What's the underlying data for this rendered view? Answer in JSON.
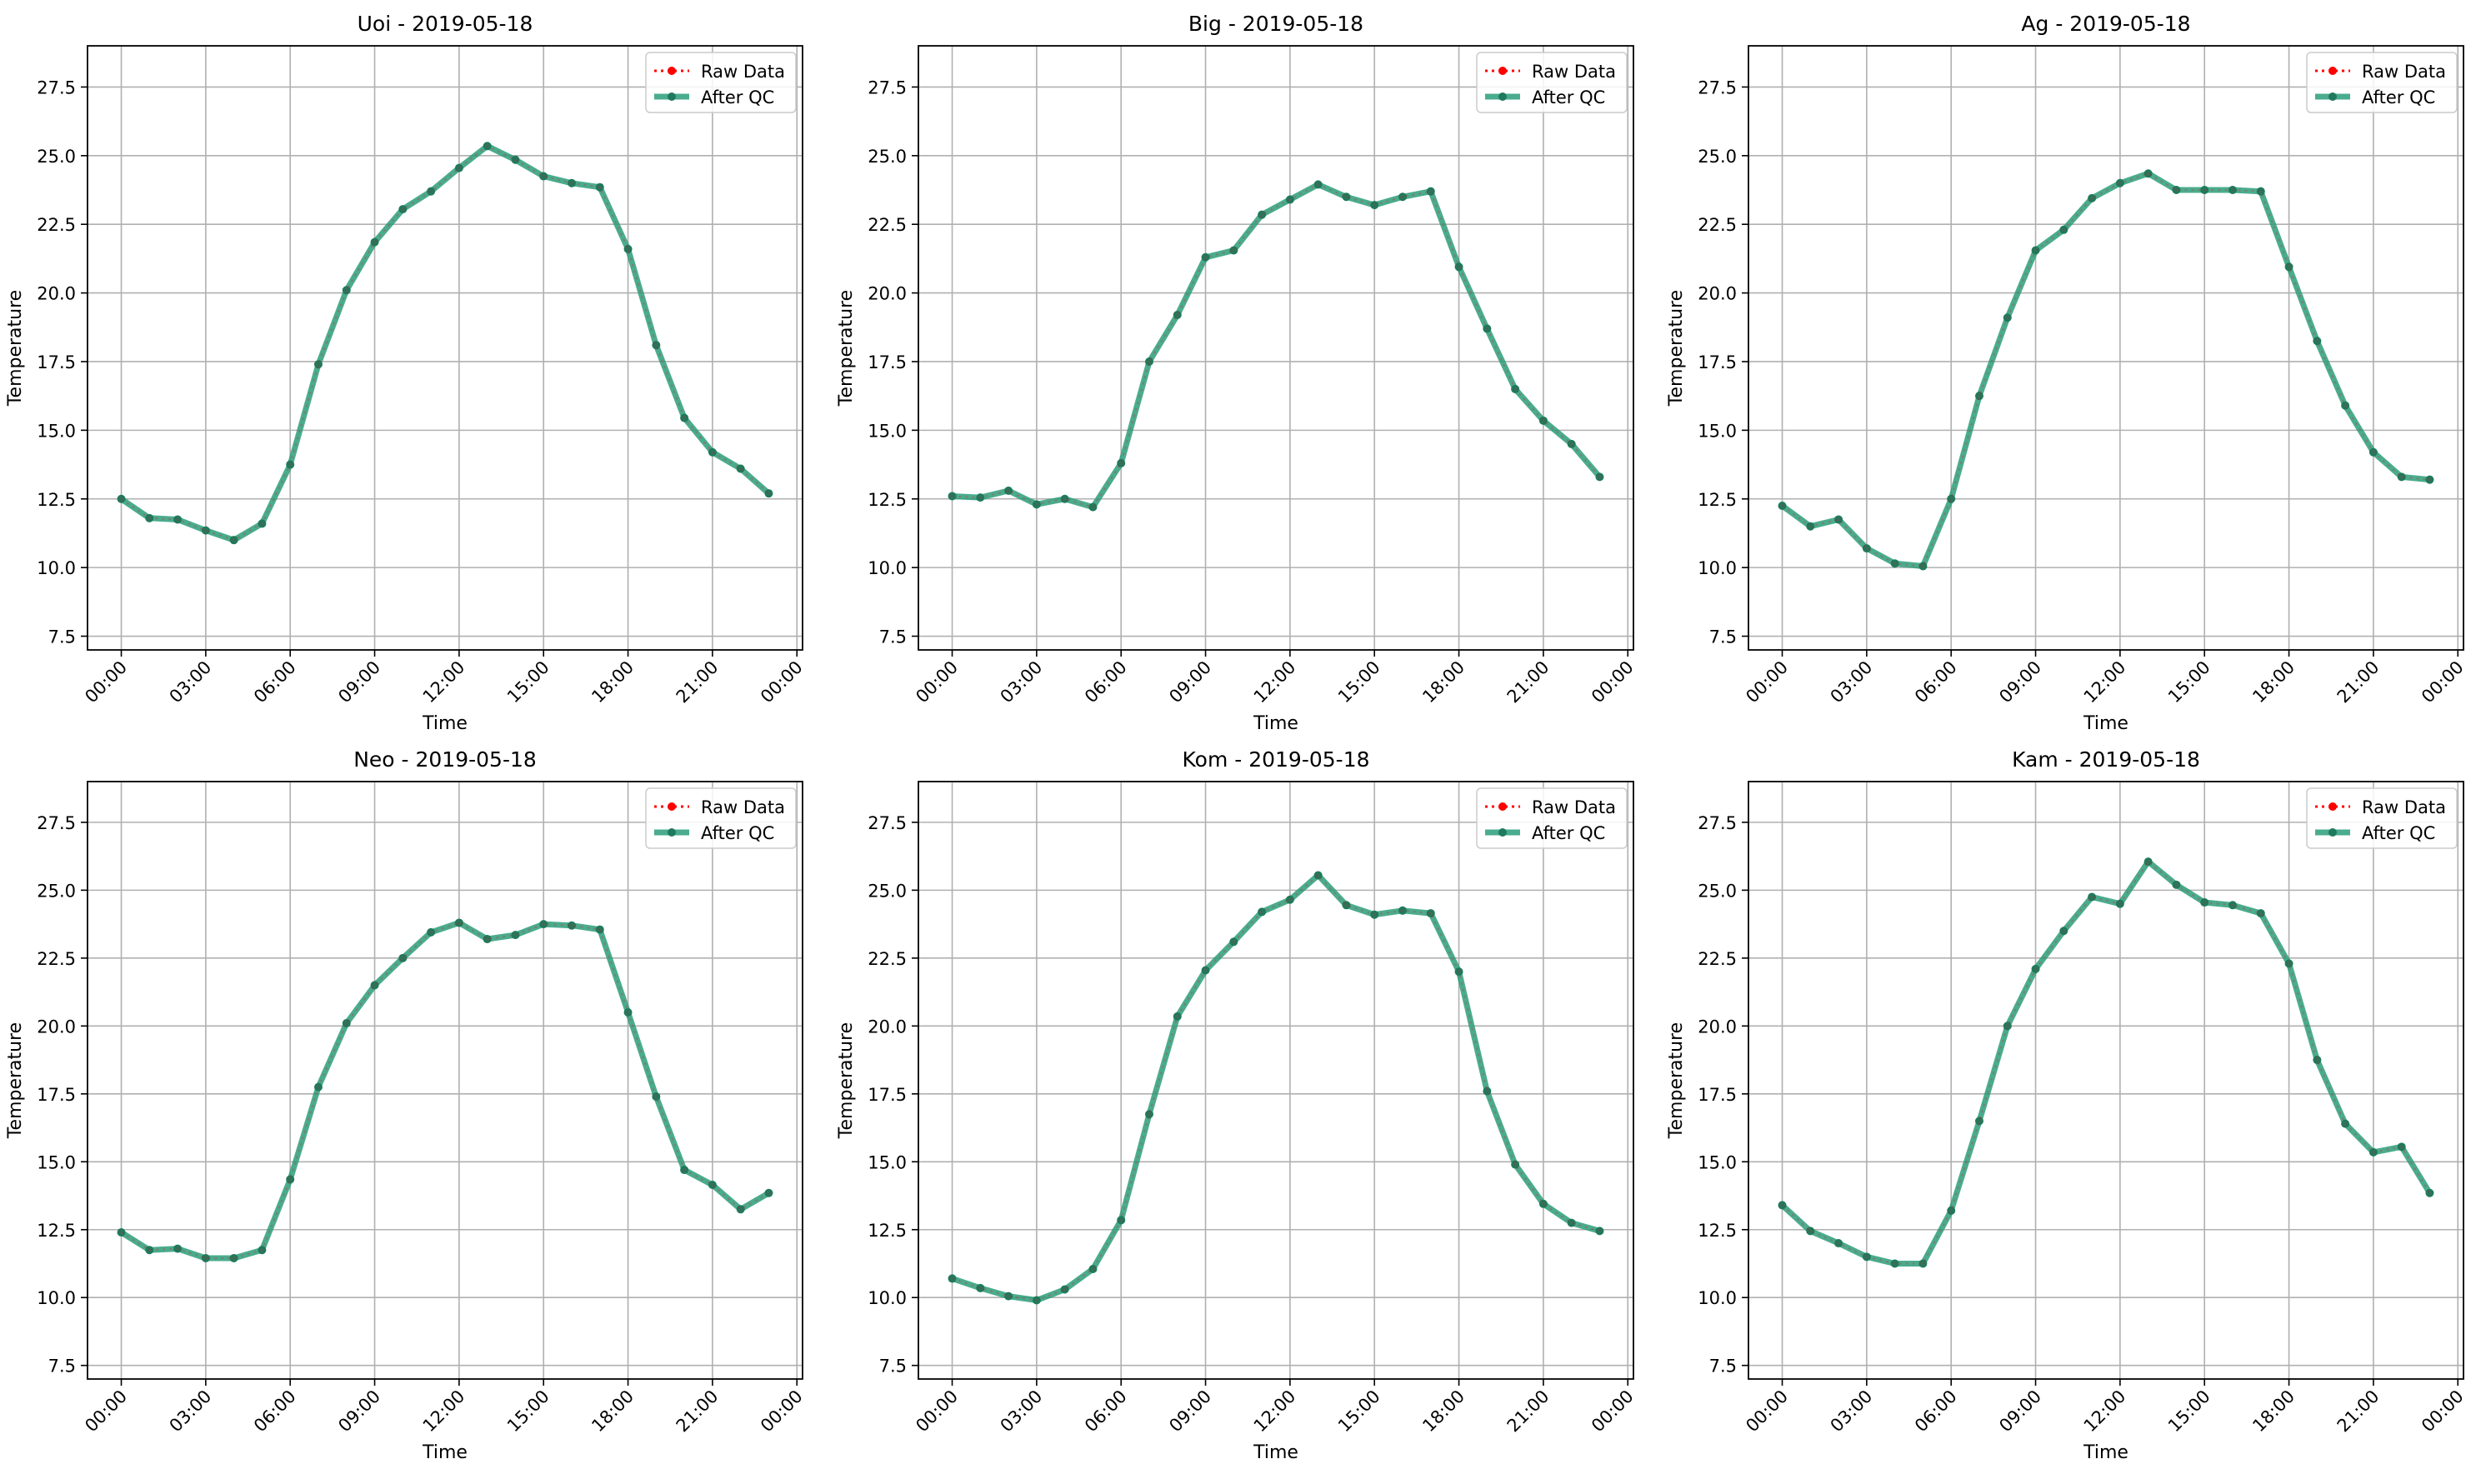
{
  "chart_data": [
    {
      "type": "line",
      "title": "Uoi - 2019-05-18",
      "xlabel": "Time",
      "ylabel": "Temperature",
      "ylim": [
        7.0,
        29.0
      ],
      "xlim": [
        "2019-05-17 22:48",
        "2019-05-19 00:12"
      ],
      "y_ticks": [
        "7.5",
        "10.0",
        "12.5",
        "15.0",
        "17.5",
        "20.0",
        "22.5",
        "25.0",
        "27.5"
      ],
      "x_ticks": [
        "00:00",
        "03:00",
        "06:00",
        "09:00",
        "12:00",
        "15:00",
        "18:00",
        "21:00",
        "00:00"
      ],
      "grid": true,
      "legend": "top-right",
      "legend_entries": [
        "Raw Data",
        "After QC"
      ],
      "x": [
        "00:00",
        "01:00",
        "02:00",
        "03:00",
        "04:00",
        "05:00",
        "06:00",
        "07:00",
        "08:00",
        "09:00",
        "10:00",
        "11:00",
        "12:00",
        "13:00",
        "14:00",
        "15:00",
        "16:00",
        "17:00",
        "18:00",
        "19:00",
        "20:00",
        "21:00",
        "22:00",
        "23:00"
      ],
      "series": [
        {
          "name": "Raw Data",
          "values": [
            12.5,
            11.8,
            11.75,
            11.35,
            11.0,
            11.6,
            13.75,
            17.4,
            20.1,
            21.85,
            23.05,
            23.7,
            24.55,
            25.35,
            24.85,
            24.25,
            24.0,
            23.85,
            21.6,
            18.1,
            15.45,
            14.2,
            13.6,
            12.7
          ]
        },
        {
          "name": "After QC",
          "values": [
            12.5,
            11.8,
            11.75,
            11.35,
            11.0,
            11.6,
            13.75,
            17.4,
            20.1,
            21.85,
            23.05,
            23.7,
            24.55,
            25.35,
            24.85,
            24.25,
            24.0,
            23.85,
            21.6,
            18.1,
            15.45,
            14.2,
            13.6,
            12.7
          ]
        }
      ]
    },
    {
      "type": "line",
      "title": "Big - 2019-05-18",
      "xlabel": "Time",
      "ylabel": "Temperature",
      "ylim": [
        7.0,
        29.0
      ],
      "xlim": [
        "2019-05-17 22:48",
        "2019-05-19 00:12"
      ],
      "y_ticks": [
        "7.5",
        "10.0",
        "12.5",
        "15.0",
        "17.5",
        "20.0",
        "22.5",
        "25.0",
        "27.5"
      ],
      "x_ticks": [
        "00:00",
        "03:00",
        "06:00",
        "09:00",
        "12:00",
        "15:00",
        "18:00",
        "21:00",
        "00:00"
      ],
      "grid": true,
      "legend": "top-right",
      "legend_entries": [
        "Raw Data",
        "After QC"
      ],
      "x": [
        "00:00",
        "01:00",
        "02:00",
        "03:00",
        "04:00",
        "05:00",
        "06:00",
        "07:00",
        "08:00",
        "09:00",
        "10:00",
        "11:00",
        "12:00",
        "13:00",
        "14:00",
        "15:00",
        "16:00",
        "17:00",
        "18:00",
        "19:00",
        "20:00",
        "21:00",
        "22:00",
        "23:00"
      ],
      "series": [
        {
          "name": "Raw Data",
          "values": [
            12.6,
            12.55,
            12.8,
            12.3,
            12.5,
            12.2,
            13.8,
            17.5,
            19.2,
            21.3,
            21.55,
            22.85,
            23.4,
            23.95,
            23.5,
            23.2,
            23.5,
            23.7,
            20.95,
            18.7,
            16.5,
            15.35,
            14.5,
            13.3
          ]
        },
        {
          "name": "After QC",
          "values": [
            12.6,
            12.55,
            12.8,
            12.3,
            12.5,
            12.2,
            13.8,
            17.5,
            19.2,
            21.3,
            21.55,
            22.85,
            23.4,
            23.95,
            23.5,
            23.2,
            23.5,
            23.7,
            20.95,
            18.7,
            16.5,
            15.35,
            14.5,
            13.3
          ]
        }
      ]
    },
    {
      "type": "line",
      "title": "Ag - 2019-05-18",
      "xlabel": "Time",
      "ylabel": "Temperature",
      "ylim": [
        7.0,
        29.0
      ],
      "xlim": [
        "2019-05-17 22:48",
        "2019-05-19 00:12"
      ],
      "y_ticks": [
        "7.5",
        "10.0",
        "12.5",
        "15.0",
        "17.5",
        "20.0",
        "22.5",
        "25.0",
        "27.5"
      ],
      "x_ticks": [
        "00:00",
        "03:00",
        "06:00",
        "09:00",
        "12:00",
        "15:00",
        "18:00",
        "21:00",
        "00:00"
      ],
      "grid": true,
      "legend": "top-right",
      "legend_entries": [
        "Raw Data",
        "After QC"
      ],
      "x": [
        "00:00",
        "01:00",
        "02:00",
        "03:00",
        "04:00",
        "05:00",
        "06:00",
        "07:00",
        "08:00",
        "09:00",
        "10:00",
        "11:00",
        "12:00",
        "13:00",
        "14:00",
        "15:00",
        "16:00",
        "17:00",
        "18:00",
        "19:00",
        "20:00",
        "21:00",
        "22:00",
        "23:00"
      ],
      "series": [
        {
          "name": "Raw Data",
          "values": [
            12.25,
            11.5,
            11.75,
            10.7,
            10.15,
            10.05,
            12.5,
            16.25,
            19.1,
            21.55,
            22.3,
            23.45,
            24.0,
            24.35,
            23.75,
            23.75,
            23.75,
            23.7,
            20.95,
            18.25,
            15.9,
            14.2,
            13.3,
            13.2
          ]
        },
        {
          "name": "After QC",
          "values": [
            12.25,
            11.5,
            11.75,
            10.7,
            10.15,
            10.05,
            12.5,
            16.25,
            19.1,
            21.55,
            22.3,
            23.45,
            24.0,
            24.35,
            23.75,
            23.75,
            23.75,
            23.7,
            20.95,
            18.25,
            15.9,
            14.2,
            13.3,
            13.2
          ]
        }
      ]
    },
    {
      "type": "line",
      "title": "Neo - 2019-05-18",
      "xlabel": "Time",
      "ylabel": "Temperature",
      "ylim": [
        7.0,
        29.0
      ],
      "xlim": [
        "2019-05-17 22:48",
        "2019-05-19 00:12"
      ],
      "y_ticks": [
        "7.5",
        "10.0",
        "12.5",
        "15.0",
        "17.5",
        "20.0",
        "22.5",
        "25.0",
        "27.5"
      ],
      "x_ticks": [
        "00:00",
        "03:00",
        "06:00",
        "09:00",
        "12:00",
        "15:00",
        "18:00",
        "21:00",
        "00:00"
      ],
      "grid": true,
      "legend": "top-right",
      "legend_entries": [
        "Raw Data",
        "After QC"
      ],
      "x": [
        "00:00",
        "01:00",
        "02:00",
        "03:00",
        "04:00",
        "05:00",
        "06:00",
        "07:00",
        "08:00",
        "09:00",
        "10:00",
        "11:00",
        "12:00",
        "13:00",
        "14:00",
        "15:00",
        "16:00",
        "17:00",
        "18:00",
        "19:00",
        "20:00",
        "21:00",
        "22:00",
        "23:00"
      ],
      "series": [
        {
          "name": "Raw Data",
          "values": [
            12.4,
            11.75,
            11.8,
            11.45,
            11.45,
            11.75,
            14.35,
            17.75,
            20.1,
            21.5,
            22.5,
            23.45,
            23.8,
            23.2,
            23.35,
            23.75,
            23.7,
            23.55,
            20.5,
            17.4,
            14.7,
            14.15,
            13.25,
            13.85
          ]
        },
        {
          "name": "After QC",
          "values": [
            12.4,
            11.75,
            11.8,
            11.45,
            11.45,
            11.75,
            14.35,
            17.75,
            20.1,
            21.5,
            22.5,
            23.45,
            23.8,
            23.2,
            23.35,
            23.75,
            23.7,
            23.55,
            20.5,
            17.4,
            14.7,
            14.15,
            13.25,
            13.85
          ]
        }
      ]
    },
    {
      "type": "line",
      "title": "Kom - 2019-05-18",
      "xlabel": "Time",
      "ylabel": "Temperature",
      "ylim": [
        7.0,
        29.0
      ],
      "xlim": [
        "2019-05-17 22:48",
        "2019-05-19 00:12"
      ],
      "y_ticks": [
        "7.5",
        "10.0",
        "12.5",
        "15.0",
        "17.5",
        "20.0",
        "22.5",
        "25.0",
        "27.5"
      ],
      "x_ticks": [
        "00:00",
        "03:00",
        "06:00",
        "09:00",
        "12:00",
        "15:00",
        "18:00",
        "21:00",
        "00:00"
      ],
      "grid": true,
      "legend": "top-right",
      "legend_entries": [
        "Raw Data",
        "After QC"
      ],
      "x": [
        "00:00",
        "01:00",
        "02:00",
        "03:00",
        "04:00",
        "05:00",
        "06:00",
        "07:00",
        "08:00",
        "09:00",
        "10:00",
        "11:00",
        "12:00",
        "13:00",
        "14:00",
        "15:00",
        "16:00",
        "17:00",
        "18:00",
        "19:00",
        "20:00",
        "21:00",
        "22:00",
        "23:00"
      ],
      "series": [
        {
          "name": "Raw Data",
          "values": [
            10.7,
            10.35,
            10.05,
            9.9,
            10.3,
            11.05,
            12.85,
            16.75,
            20.35,
            22.05,
            23.1,
            24.2,
            24.65,
            25.55,
            24.45,
            24.1,
            24.25,
            24.15,
            22.0,
            17.6,
            14.9,
            13.45,
            12.75,
            12.45
          ]
        },
        {
          "name": "After QC",
          "values": [
            10.7,
            10.35,
            10.05,
            9.9,
            10.3,
            11.05,
            12.85,
            16.75,
            20.35,
            22.05,
            23.1,
            24.2,
            24.65,
            25.55,
            24.45,
            24.1,
            24.25,
            24.15,
            22.0,
            17.6,
            14.9,
            13.45,
            12.75,
            12.45
          ]
        }
      ]
    },
    {
      "type": "line",
      "title": "Kam - 2019-05-18",
      "xlabel": "Time",
      "ylabel": "Temperature",
      "ylim": [
        7.0,
        29.0
      ],
      "xlim": [
        "2019-05-17 22:48",
        "2019-05-19 00:12"
      ],
      "y_ticks": [
        "7.5",
        "10.0",
        "12.5",
        "15.0",
        "17.5",
        "20.0",
        "22.5",
        "25.0",
        "27.5"
      ],
      "x_ticks": [
        "00:00",
        "03:00",
        "06:00",
        "09:00",
        "12:00",
        "15:00",
        "18:00",
        "21:00",
        "00:00"
      ],
      "grid": true,
      "legend": "top-right",
      "legend_entries": [
        "Raw Data",
        "After QC"
      ],
      "x": [
        "00:00",
        "01:00",
        "02:00",
        "03:00",
        "04:00",
        "05:00",
        "06:00",
        "07:00",
        "08:00",
        "09:00",
        "10:00",
        "11:00",
        "12:00",
        "13:00",
        "14:00",
        "15:00",
        "16:00",
        "17:00",
        "18:00",
        "19:00",
        "20:00",
        "21:00",
        "22:00",
        "23:00"
      ],
      "series": [
        {
          "name": "Raw Data",
          "values": [
            13.4,
            12.45,
            12.0,
            11.5,
            11.25,
            11.25,
            13.2,
            16.5,
            20.0,
            22.1,
            23.5,
            24.75,
            24.5,
            26.05,
            25.2,
            24.55,
            24.45,
            24.15,
            22.3,
            18.75,
            16.4,
            15.35,
            15.55,
            13.85
          ]
        },
        {
          "name": "After QC",
          "values": [
            13.4,
            12.45,
            12.0,
            11.5,
            11.25,
            11.25,
            13.2,
            16.5,
            20.0,
            22.1,
            23.5,
            24.75,
            24.5,
            26.05,
            25.2,
            24.55,
            24.45,
            24.15,
            22.3,
            18.75,
            16.4,
            15.35,
            15.55,
            13.85
          ]
        }
      ]
    }
  ],
  "colors": {
    "raw": "#ff0000",
    "qc": "#2a9d7a",
    "qc_marker": "#1f7a5c",
    "grid": "#b0b0b0"
  }
}
